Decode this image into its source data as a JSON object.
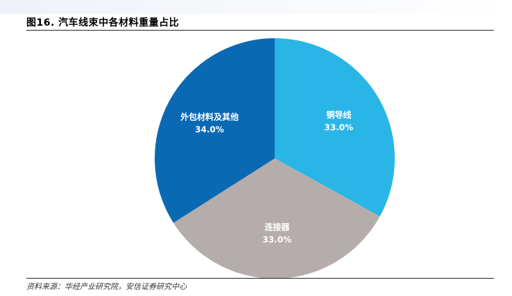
{
  "figure": {
    "title": "图16. 汽车线束中各材料重量占比",
    "source": "资料来源：华经产业研究院，安信证券研究中心"
  },
  "chart_data": {
    "type": "pie",
    "title": "",
    "slices": [
      {
        "label": "铜导线",
        "value": 33.0,
        "value_label": "33.0%",
        "color": "#29b6e6"
      },
      {
        "label": "连接器",
        "value": 33.0,
        "value_label": "33.0%",
        "color": "#b4adab"
      },
      {
        "label": "外包材料及其他",
        "value": 34.0,
        "value_label": "34.0%",
        "color": "#0a69b3"
      }
    ]
  }
}
